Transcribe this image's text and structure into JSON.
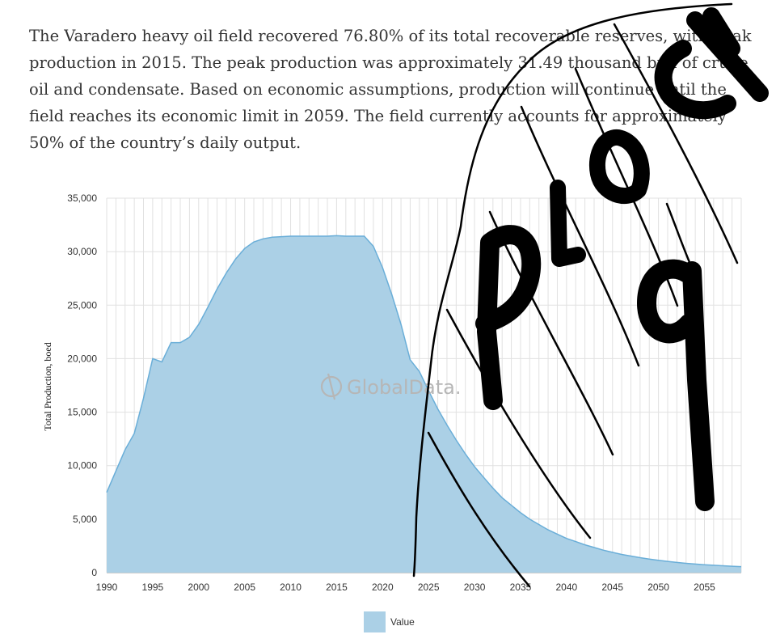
{
  "paragraph": {
    "s1": "The Varadero heavy oil field recovered 76.80% of its total recoverable reserves, with peak production in 2015.",
    "s2": "The peak production was approximately 31.49 thousand bpd of crude oil and condensate.",
    "s3": "Based on economic assumptions, production will continue until the field reaches its economic limit in 2059.",
    "s4": "The field currently accounts for approximately 50% of the country’s daily output."
  },
  "watermark": {
    "text": "GlobalData.",
    "icon": "globaldata-logo-icon"
  },
  "handwriting": {
    "text": "BLOCK Pq",
    "note": "hand-drawn scribble overlay"
  },
  "colors": {
    "area_fill": "#abd0e6",
    "area_stroke": "#6aaed8",
    "grid": "#e1e1e1",
    "ink": "#000000"
  },
  "chart_data": {
    "type": "area",
    "ylabel": "Total Production, boed",
    "ylim": [
      0,
      35000
    ],
    "yticks": [
      0,
      5000,
      10000,
      15000,
      20000,
      25000,
      30000,
      35000
    ],
    "ytick_labels": [
      "0",
      "5,000",
      "10,000",
      "15,000",
      "20,000",
      "25,000",
      "30,000",
      "35,000"
    ],
    "xlim": [
      1990,
      2059
    ],
    "xticks": [
      1990,
      1995,
      2000,
      2005,
      2010,
      2015,
      2020,
      2025,
      2030,
      2035,
      2040,
      2045,
      2050,
      2055
    ],
    "xtick_labels": [
      "1990",
      "1995",
      "2000",
      "2005",
      "2010",
      "2015",
      "2020",
      "2025",
      "2030",
      "2035",
      "2040",
      "2045",
      "2050",
      "2055"
    ],
    "grid": true,
    "legend_position": "bottom-center",
    "series": [
      {
        "name": "Value",
        "x": [
          1990,
          1991,
          1992,
          1993,
          1994,
          1995,
          1996,
          1997,
          1998,
          1999,
          2000,
          2001,
          2002,
          2003,
          2004,
          2005,
          2006,
          2007,
          2008,
          2009,
          2010,
          2011,
          2012,
          2013,
          2014,
          2015,
          2016,
          2017,
          2018,
          2019,
          2020,
          2021,
          2022,
          2023,
          2024,
          2025,
          2026,
          2027,
          2028,
          2029,
          2030,
          2031,
          2032,
          2033,
          2034,
          2035,
          2036,
          2037,
          2038,
          2039,
          2040,
          2041,
          2042,
          2043,
          2044,
          2045,
          2046,
          2047,
          2048,
          2049,
          2050,
          2051,
          2052,
          2053,
          2054,
          2055,
          2056,
          2057,
          2058,
          2059
        ],
        "y": [
          7500,
          9500,
          11500,
          13000,
          16300,
          20000,
          19700,
          21500,
          21500,
          22000,
          23200,
          24800,
          26500,
          28000,
          29300,
          30300,
          30900,
          31200,
          31350,
          31400,
          31450,
          31450,
          31450,
          31450,
          31450,
          31490,
          31450,
          31450,
          31450,
          30500,
          28500,
          26000,
          23200,
          19900,
          18800,
          17000,
          15300,
          13800,
          12400,
          11100,
          9900,
          8900,
          7900,
          7000,
          6300,
          5600,
          5000,
          4500,
          4000,
          3600,
          3200,
          2900,
          2600,
          2350,
          2100,
          1900,
          1700,
          1550,
          1400,
          1270,
          1150,
          1050,
          950,
          870,
          800,
          740,
          690,
          640,
          600,
          560
        ]
      }
    ]
  }
}
